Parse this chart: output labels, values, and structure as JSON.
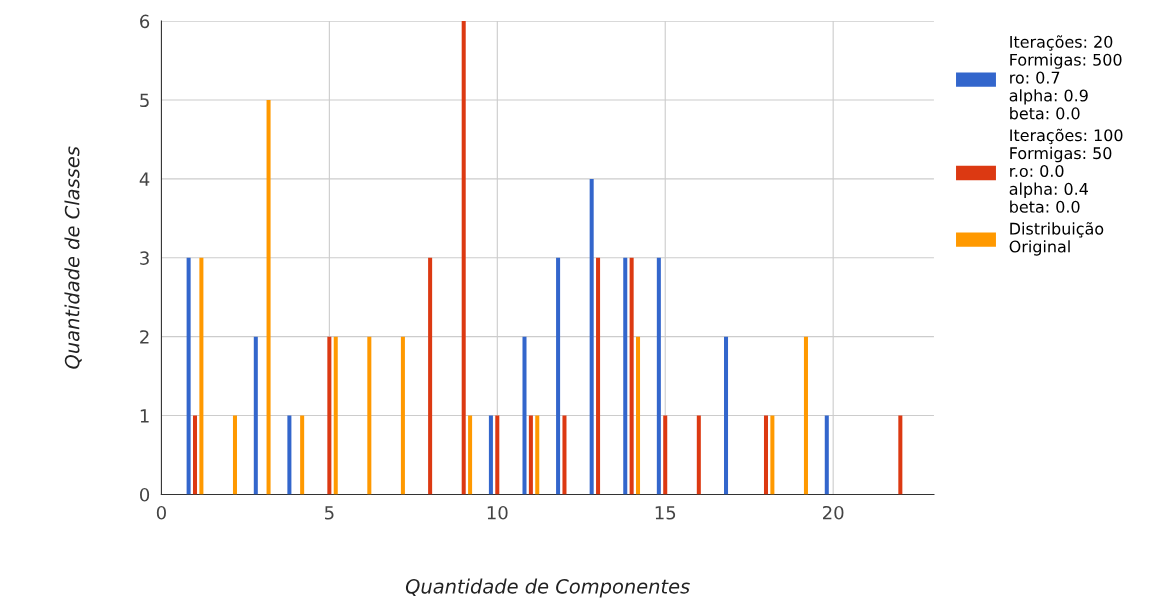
{
  "chart_data": {
    "type": "bar",
    "xlabel": "Quantidade de Componentes",
    "ylabel": "Quantidade de Classes",
    "xlim": [
      0,
      23
    ],
    "xticks": [
      0,
      5,
      10,
      15,
      20
    ],
    "ylim": [
      0,
      6
    ],
    "yticks": [
      0,
      1,
      2,
      3,
      4,
      5,
      6
    ],
    "grid": true,
    "legend": "right",
    "series": [
      {
        "name": "Iterações: 20\nFormigas: 500\nro: 0.7\nalpha: 0.9\nbeta: 0.0",
        "color": "#3366cc",
        "x": [
          1,
          3,
          4,
          10,
          11,
          12,
          13,
          14,
          15,
          17,
          20
        ],
        "values": [
          3,
          2,
          1,
          1,
          2,
          3,
          4,
          3,
          3,
          2,
          1
        ]
      },
      {
        "name": "Iterações: 100\nFormigas: 50\nr.o: 0.0\nalpha: 0.4\nbeta: 0.0",
        "color": "#dc3912",
        "x": [
          1,
          5,
          8,
          9,
          10,
          11,
          12,
          13,
          14,
          15,
          16,
          18,
          22
        ],
        "values": [
          1,
          2,
          3,
          6,
          1,
          1,
          1,
          3,
          3,
          1,
          1,
          1,
          1
        ]
      },
      {
        "name": "Distribuição\nOriginal",
        "color": "#ff9900",
        "x": [
          1,
          2,
          3,
          4,
          5,
          6,
          7,
          9,
          11,
          14,
          18,
          19
        ],
        "values": [
          3,
          1,
          5,
          1,
          2,
          2,
          2,
          1,
          1,
          2,
          1,
          2
        ]
      }
    ]
  }
}
